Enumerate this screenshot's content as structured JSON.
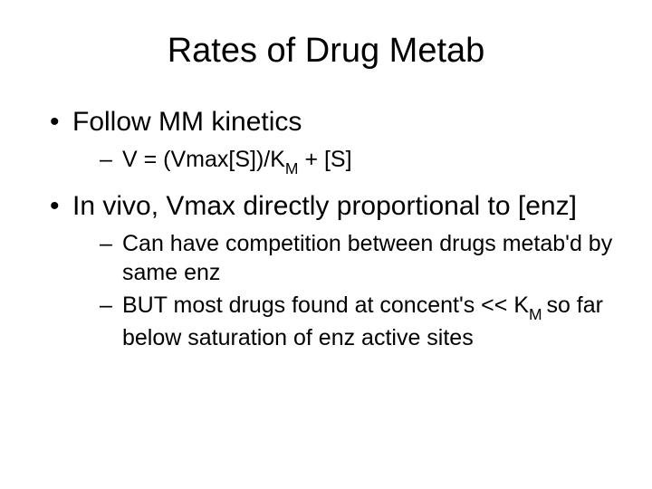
{
  "slide": {
    "title": "Rates of Drug Metab",
    "title_fontsize": 38,
    "body_fontsize": 30,
    "sub_fontsize": 25,
    "background_color": "#ffffff",
    "text_color": "#000000",
    "bullets": [
      {
        "text": "Follow MM kinetics",
        "subs": [
          {
            "prefix": "V = (Vmax[S])/K",
            "subscript": "M",
            "suffix": " + [S]"
          }
        ]
      },
      {
        "text": "In vivo, Vmax directly proportional to [enz]",
        "subs": [
          {
            "prefix": "Can have competition between drugs metab'd by same enz",
            "subscript": "",
            "suffix": ""
          },
          {
            "prefix": "BUT most drugs found at concent's << K",
            "subscript": "M ",
            "suffix": "so far below saturation of enz active sites"
          }
        ]
      }
    ]
  }
}
